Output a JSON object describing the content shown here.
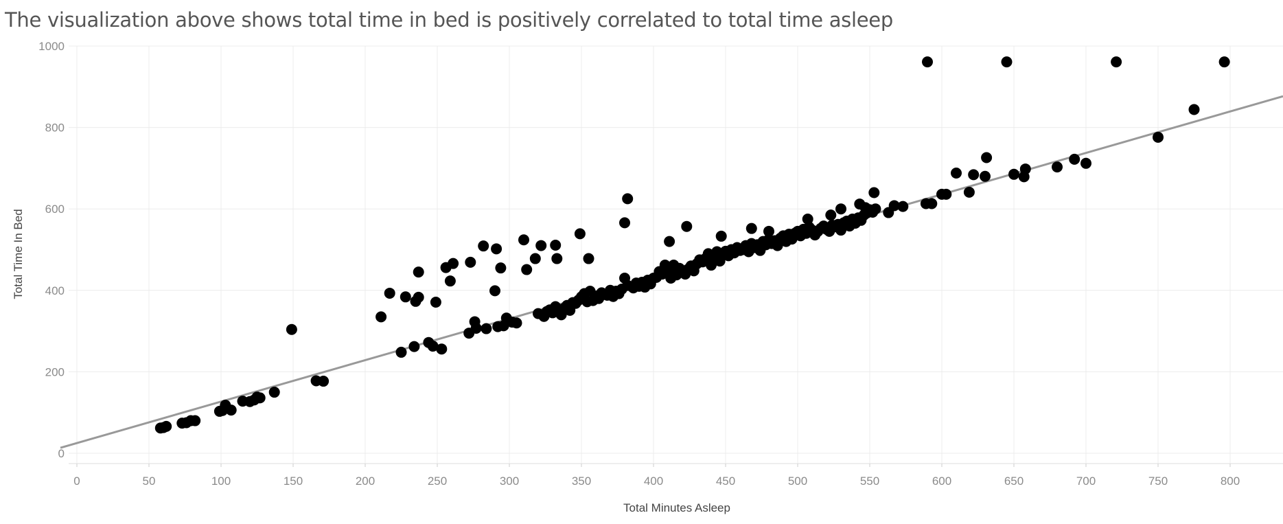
{
  "chart_data": {
    "type": "scatter",
    "title": "The visualization above shows total time in bed is positively correlated to total time asleep",
    "xlabel": "Total Minutes Asleep",
    "ylabel": "Total Time In Bed",
    "xlim": [
      0,
      840
    ],
    "ylim": [
      0,
      1000
    ],
    "xticks": [
      0,
      50,
      100,
      150,
      200,
      250,
      300,
      350,
      400,
      450,
      500,
      550,
      600,
      650,
      700,
      750,
      800
    ],
    "yticks": [
      0,
      200,
      400,
      600,
      800,
      1000
    ],
    "grid": true,
    "colors": {
      "points": "#000000",
      "trend": "#999999",
      "grid": "#ececec"
    },
    "trend_line": {
      "x": [
        0,
        840
      ],
      "y": [
        25,
        880
      ]
    },
    "points": [
      [
        58,
        62
      ],
      [
        60,
        63
      ],
      [
        62,
        66
      ],
      [
        73,
        74
      ],
      [
        76,
        75
      ],
      [
        79,
        80
      ],
      [
        82,
        80
      ],
      [
        99,
        103
      ],
      [
        101,
        105
      ],
      [
        103,
        118
      ],
      [
        107,
        106
      ],
      [
        115,
        128
      ],
      [
        120,
        127
      ],
      [
        123,
        131
      ],
      [
        125,
        138
      ],
      [
        127,
        136
      ],
      [
        137,
        150
      ],
      [
        149,
        304
      ],
      [
        166,
        178
      ],
      [
        171,
        177
      ],
      [
        211,
        335
      ],
      [
        217,
        393
      ],
      [
        225,
        248
      ],
      [
        228,
        384
      ],
      [
        234,
        262
      ],
      [
        235,
        373
      ],
      [
        237,
        383
      ],
      [
        237,
        445
      ],
      [
        244,
        272
      ],
      [
        247,
        263
      ],
      [
        249,
        371
      ],
      [
        253,
        256
      ],
      [
        256,
        456
      ],
      [
        259,
        423
      ],
      [
        261,
        466
      ],
      [
        272,
        295
      ],
      [
        273,
        469
      ],
      [
        276,
        323
      ],
      [
        277,
        307
      ],
      [
        282,
        509
      ],
      [
        284,
        306
      ],
      [
        290,
        399
      ],
      [
        291,
        502
      ],
      [
        292,
        311
      ],
      [
        294,
        455
      ],
      [
        296,
        313
      ],
      [
        298,
        332
      ],
      [
        302,
        322
      ],
      [
        305,
        320
      ],
      [
        310,
        524
      ],
      [
        312,
        451
      ],
      [
        318,
        478
      ],
      [
        322,
        510
      ],
      [
        332,
        511
      ],
      [
        333,
        478
      ],
      [
        349,
        539
      ],
      [
        355,
        478
      ],
      [
        320,
        343
      ],
      [
        324,
        336
      ],
      [
        326,
        348
      ],
      [
        328,
        352
      ],
      [
        330,
        345
      ],
      [
        332,
        360
      ],
      [
        334,
        350
      ],
      [
        336,
        340
      ],
      [
        338,
        356
      ],
      [
        340,
        363
      ],
      [
        342,
        351
      ],
      [
        344,
        370
      ],
      [
        346,
        368
      ],
      [
        348,
        376
      ],
      [
        350,
        384
      ],
      [
        352,
        392
      ],
      [
        354,
        372
      ],
      [
        356,
        398
      ],
      [
        358,
        375
      ],
      [
        360,
        386
      ],
      [
        362,
        380
      ],
      [
        364,
        394
      ],
      [
        366,
        390
      ],
      [
        368,
        388
      ],
      [
        370,
        400
      ],
      [
        372,
        385
      ],
      [
        374,
        398
      ],
      [
        376,
        392
      ],
      [
        378,
        403
      ],
      [
        380,
        430
      ],
      [
        382,
        412
      ],
      [
        386,
        406
      ],
      [
        388,
        418
      ],
      [
        390,
        410
      ],
      [
        392,
        420
      ],
      [
        394,
        408
      ],
      [
        396,
        425
      ],
      [
        398,
        416
      ],
      [
        400,
        430
      ],
      [
        402,
        432
      ],
      [
        404,
        446
      ],
      [
        406,
        440
      ],
      [
        408,
        462
      ],
      [
        410,
        450
      ],
      [
        412,
        430
      ],
      [
        414,
        462
      ],
      [
        416,
        438
      ],
      [
        418,
        454
      ],
      [
        420,
        446
      ],
      [
        422,
        440
      ],
      [
        424,
        452
      ],
      [
        426,
        460
      ],
      [
        428,
        448
      ],
      [
        430,
        465
      ],
      [
        432,
        475
      ],
      [
        434,
        470
      ],
      [
        436,
        478
      ],
      [
        438,
        490
      ],
      [
        440,
        462
      ],
      [
        442,
        480
      ],
      [
        444,
        495
      ],
      [
        446,
        472
      ],
      [
        448,
        488
      ],
      [
        450,
        496
      ],
      [
        452,
        485
      ],
      [
        454,
        500
      ],
      [
        456,
        492
      ],
      [
        458,
        505
      ],
      [
        460,
        498
      ],
      [
        462,
        500
      ],
      [
        464,
        510
      ],
      [
        466,
        495
      ],
      [
        468,
        515
      ],
      [
        470,
        505
      ],
      [
        472,
        512
      ],
      [
        474,
        498
      ],
      [
        476,
        520
      ],
      [
        478,
        512
      ],
      [
        480,
        525
      ],
      [
        482,
        515
      ],
      [
        484,
        522
      ],
      [
        486,
        510
      ],
      [
        488,
        528
      ],
      [
        490,
        534
      ],
      [
        492,
        520
      ],
      [
        494,
        538
      ],
      [
        496,
        526
      ],
      [
        498,
        540
      ],
      [
        500,
        545
      ],
      [
        502,
        534
      ],
      [
        504,
        550
      ],
      [
        506,
        540
      ],
      [
        508,
        555
      ],
      [
        510,
        548
      ],
      [
        512,
        536
      ],
      [
        514,
        545
      ],
      [
        516,
        552
      ],
      [
        518,
        558
      ],
      [
        520,
        550
      ],
      [
        522,
        545
      ],
      [
        524,
        560
      ],
      [
        526,
        556
      ],
      [
        528,
        562
      ],
      [
        530,
        548
      ],
      [
        532,
        566
      ],
      [
        534,
        570
      ],
      [
        536,
        558
      ],
      [
        538,
        575
      ],
      [
        540,
        565
      ],
      [
        542,
        578
      ],
      [
        544,
        572
      ],
      [
        546,
        585
      ],
      [
        548,
        590
      ],
      [
        550,
        598
      ],
      [
        552,
        592
      ],
      [
        554,
        600
      ],
      [
        380,
        566
      ],
      [
        382,
        625
      ],
      [
        411,
        520
      ],
      [
        423,
        557
      ],
      [
        447,
        533
      ],
      [
        468,
        552
      ],
      [
        480,
        545
      ],
      [
        507,
        575
      ],
      [
        523,
        585
      ],
      [
        530,
        600
      ],
      [
        543,
        612
      ],
      [
        547,
        603
      ],
      [
        553,
        640
      ],
      [
        563,
        591
      ],
      [
        567,
        608
      ],
      [
        573,
        606
      ],
      [
        589,
        613
      ],
      [
        593,
        613
      ],
      [
        600,
        636
      ],
      [
        603,
        636
      ],
      [
        610,
        688
      ],
      [
        619,
        641
      ],
      [
        622,
        684
      ],
      [
        630,
        680
      ],
      [
        631,
        726
      ],
      [
        650,
        685
      ],
      [
        657,
        679
      ],
      [
        658,
        698
      ],
      [
        680,
        703
      ],
      [
        692,
        722
      ],
      [
        700,
        712
      ],
      [
        750,
        776
      ],
      [
        775,
        844
      ],
      [
        590,
        961
      ],
      [
        645,
        961
      ],
      [
        721,
        961
      ],
      [
        796,
        961
      ]
    ]
  }
}
